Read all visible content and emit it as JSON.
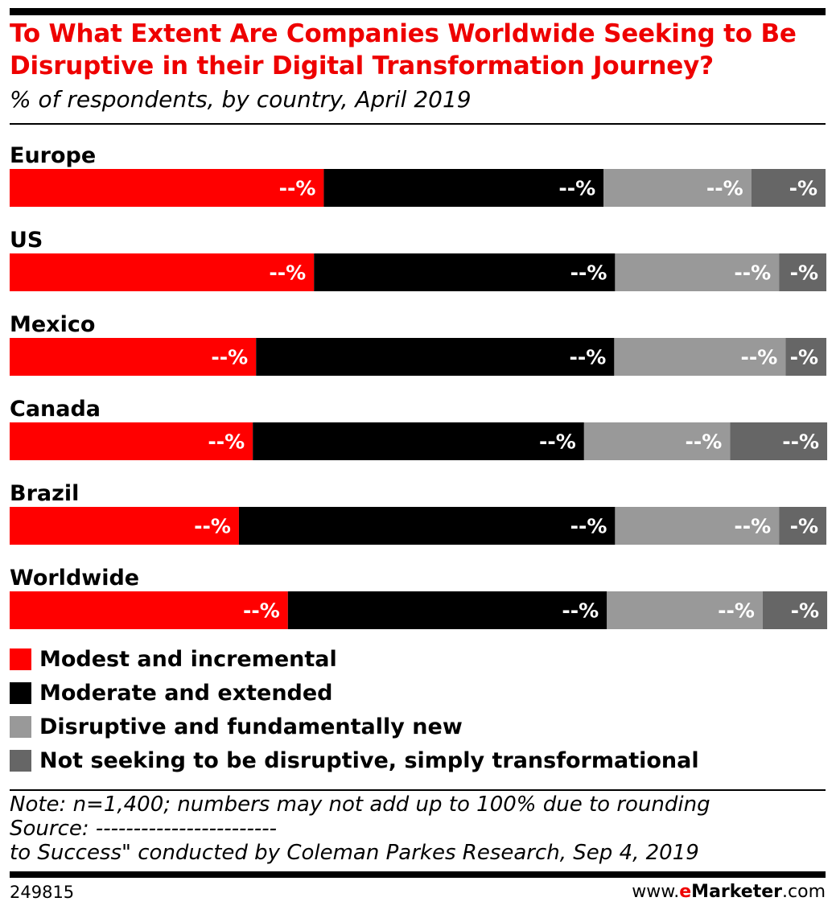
{
  "header": {
    "title": "To What Extent Are Companies Worldwide Seeking to Be Disruptive in their Digital Transformation Journey?",
    "subtitle": "% of respondents, by country, April 2019"
  },
  "chart_data": {
    "type": "bar",
    "orientation": "horizontal",
    "stacked": true,
    "categories": [
      "Europe",
      "US",
      "Mexico",
      "Canada",
      "Brazil",
      "Worldwide"
    ],
    "series": [
      {
        "name": "Modest and incremental",
        "color": "#ff0000",
        "values": [
          38.5,
          37.3,
          30.2,
          29.8,
          28.1,
          34.1
        ],
        "labels": [
          "--%",
          "--%",
          "--%",
          "--%",
          "--%",
          "--%"
        ]
      },
      {
        "name": "Moderate and extended",
        "color": "#000000",
        "values": [
          34.3,
          36.9,
          43.9,
          40.6,
          46.1,
          39.1
        ],
        "labels": [
          "--%",
          "--%",
          "--%",
          "--%",
          "--%",
          "--%"
        ]
      },
      {
        "name": "Disruptive and fundamentally new",
        "color": "#999999",
        "values": [
          18.1,
          20.1,
          21.0,
          17.9,
          20.1,
          19.1
        ],
        "labels": [
          "--%",
          "--%",
          "--%",
          "--%",
          "--%",
          "--%"
        ]
      },
      {
        "name": "Not seeking to be disruptive, simply transformational",
        "color": "#666666",
        "values": [
          9.1,
          5.8,
          5.0,
          11.9,
          5.8,
          7.9
        ],
        "labels": [
          "-%",
          "-%",
          "-%",
          "--%",
          "-%",
          "-%"
        ]
      }
    ],
    "xlim": [
      0,
      100
    ],
    "legend_position": "bottom"
  },
  "footer": {
    "note": "Note: n=1,400; numbers may not add up to 100% due to rounding",
    "source": "Source: ------------------------",
    "source_cont": "to Success\" conducted by Coleman Parkes Research, Sep 4, 2019",
    "chart_id": "249815",
    "brand_prefix": "www.",
    "brand_e": "e",
    "brand_name": "Marketer",
    "brand_suffix": ".com"
  }
}
